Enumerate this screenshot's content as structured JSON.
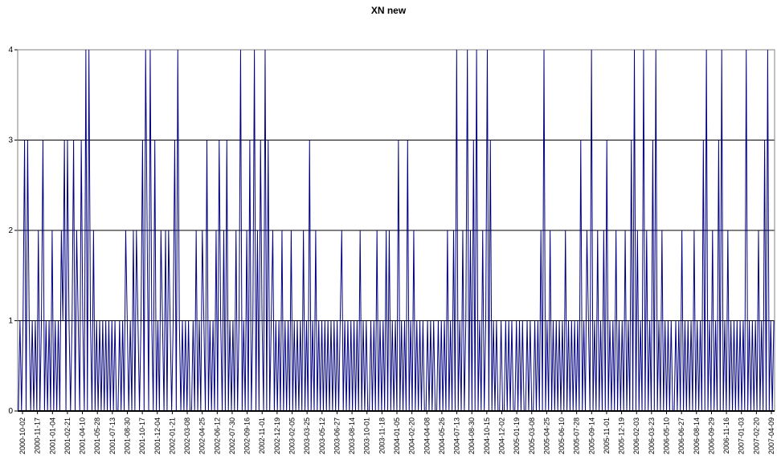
{
  "chart_data": {
    "type": "line",
    "title": "XN new",
    "xlabel": "",
    "ylabel": "",
    "ylim": [
      0,
      4
    ],
    "grid": true,
    "legend": "none",
    "line_color": "#000080",
    "yticks": [
      0,
      1,
      2,
      3,
      4
    ],
    "xticks": [
      "2000-10-02",
      "2000-11-17",
      "2001-01-04",
      "2001-02-21",
      "2001-04-10",
      "2001-05-28",
      "2001-07-13",
      "2001-08-30",
      "2001-10-17",
      "2001-12-04",
      "2002-01-21",
      "2002-03-08",
      "2002-04-25",
      "2002-06-12",
      "2002-07-30",
      "2002-09-16",
      "2002-11-01",
      "2002-12-19",
      "2003-02-05",
      "2003-03-25",
      "2003-05-12",
      "2003-06-27",
      "2003-08-14",
      "2003-10-01",
      "2003-11-18",
      "2004-01-05",
      "2004-02-20",
      "2004-04-08",
      "2004-05-26",
      "2004-07-13",
      "2004-08-30",
      "2004-10-15",
      "2004-12-02",
      "2005-01-19",
      "2005-03-08",
      "2005-04-25",
      "2005-06-10",
      "2005-07-28",
      "2005-09-14",
      "2005-11-01",
      "2005-12-19",
      "2006-02-03",
      "2006-03-23",
      "2006-05-10",
      "2006-06-27",
      "2006-08-14",
      "2006-09-29",
      "2006-11-16",
      "2007-01-03",
      "2007-02-20",
      "2007-04-09"
    ],
    "series": [
      {
        "values": [
          0,
          1,
          0,
          1,
          3,
          0,
          3,
          1,
          0,
          1,
          0,
          1,
          0,
          2,
          0,
          1,
          3,
          0,
          1,
          0,
          1,
          0,
          2,
          0,
          1,
          0,
          1,
          0,
          2,
          1,
          3,
          0,
          3,
          1,
          0,
          1,
          3,
          0,
          2,
          1,
          0,
          3,
          1,
          0,
          4,
          0,
          4,
          1,
          0,
          2,
          0,
          1,
          0,
          1,
          0,
          1,
          0,
          1,
          0,
          1,
          0,
          1,
          0,
          1,
          0,
          0,
          1,
          0,
          1,
          0,
          2,
          1,
          0,
          1,
          0,
          2,
          0,
          2,
          1,
          0,
          1,
          3,
          0,
          4,
          2,
          0,
          4,
          1,
          0,
          3,
          0,
          1,
          0,
          2,
          1,
          0,
          2,
          0,
          2,
          1,
          0,
          1,
          3,
          0,
          4,
          1,
          0,
          1,
          0,
          1,
          0,
          1,
          0,
          0,
          1,
          0,
          2,
          0,
          1,
          0,
          2,
          1,
          0,
          3,
          0,
          1,
          0,
          1,
          0,
          2,
          0,
          3,
          1,
          0,
          2,
          0,
          3,
          0,
          1,
          0,
          1,
          0,
          2,
          0,
          1,
          4,
          0,
          1,
          0,
          2,
          0,
          3,
          0,
          1,
          4,
          0,
          2,
          0,
          3,
          1,
          0,
          4,
          0,
          3,
          0,
          1,
          2,
          0,
          1,
          0,
          1,
          0,
          2,
          0,
          1,
          0,
          1,
          0,
          2,
          0,
          1,
          0,
          1,
          0,
          1,
          0,
          2,
          0,
          1,
          0,
          3,
          0,
          1,
          0,
          2,
          0,
          1,
          0,
          1,
          0,
          1,
          0,
          1,
          0,
          1,
          0,
          1,
          0,
          1,
          0,
          1,
          2,
          0,
          1,
          0,
          1,
          0,
          1,
          0,
          1,
          0,
          1,
          0,
          2,
          0,
          1,
          0,
          1,
          0,
          0,
          1,
          0,
          1,
          0,
          2,
          0,
          1,
          0,
          1,
          0,
          2,
          0,
          2,
          0,
          1,
          0,
          1,
          0,
          3,
          0,
          1,
          0,
          1,
          0,
          3,
          0,
          1,
          0,
          2,
          0,
          1,
          0,
          1,
          0,
          1,
          0,
          0,
          1,
          0,
          1,
          0,
          1,
          0,
          0,
          1,
          0,
          1,
          0,
          1,
          0,
          2,
          0,
          1,
          0,
          2,
          0,
          4,
          0,
          1,
          0,
          2,
          0,
          1,
          4,
          0,
          2,
          0,
          3,
          0,
          4,
          0,
          1,
          0,
          2,
          0,
          1,
          4,
          0,
          3,
          0,
          1,
          0,
          1,
          0,
          0,
          1,
          0,
          0,
          1,
          0,
          1,
          0,
          1,
          0,
          0,
          1,
          0,
          1,
          0,
          1,
          0,
          0,
          1,
          0,
          1,
          0,
          0,
          1,
          0,
          1,
          0,
          2,
          0,
          4,
          0,
          1,
          0,
          2,
          0,
          1,
          0,
          1,
          0,
          1,
          0,
          1,
          0,
          2,
          0,
          1,
          0,
          1,
          0,
          1,
          0,
          1,
          0,
          3,
          0,
          1,
          0,
          2,
          1,
          0,
          4,
          0,
          1,
          0,
          2,
          0,
          1,
          0,
          2,
          0,
          3,
          0,
          1,
          0,
          1,
          0,
          2,
          0,
          1,
          0,
          1,
          0,
          2,
          0,
          1,
          0,
          3,
          0,
          4,
          0,
          2,
          0,
          1,
          0,
          4,
          0,
          2,
          0,
          1,
          0,
          3,
          0,
          4,
          0,
          1,
          0,
          2,
          0,
          1,
          0,
          1,
          0,
          1,
          0,
          0,
          1,
          0,
          1,
          0,
          2,
          0,
          1,
          0,
          1,
          0,
          1,
          0,
          2,
          0,
          1,
          0,
          1,
          0,
          3,
          0,
          4,
          0,
          1,
          0,
          2,
          0,
          1,
          0,
          3,
          0,
          4,
          0,
          1,
          0,
          2,
          0,
          1,
          0,
          1,
          0,
          1,
          0,
          1,
          0,
          1,
          0,
          4,
          0,
          1,
          0,
          1,
          0,
          1,
          0,
          2,
          0,
          1,
          0,
          3,
          0,
          4,
          0,
          1,
          0,
          1
        ]
      }
    ]
  }
}
